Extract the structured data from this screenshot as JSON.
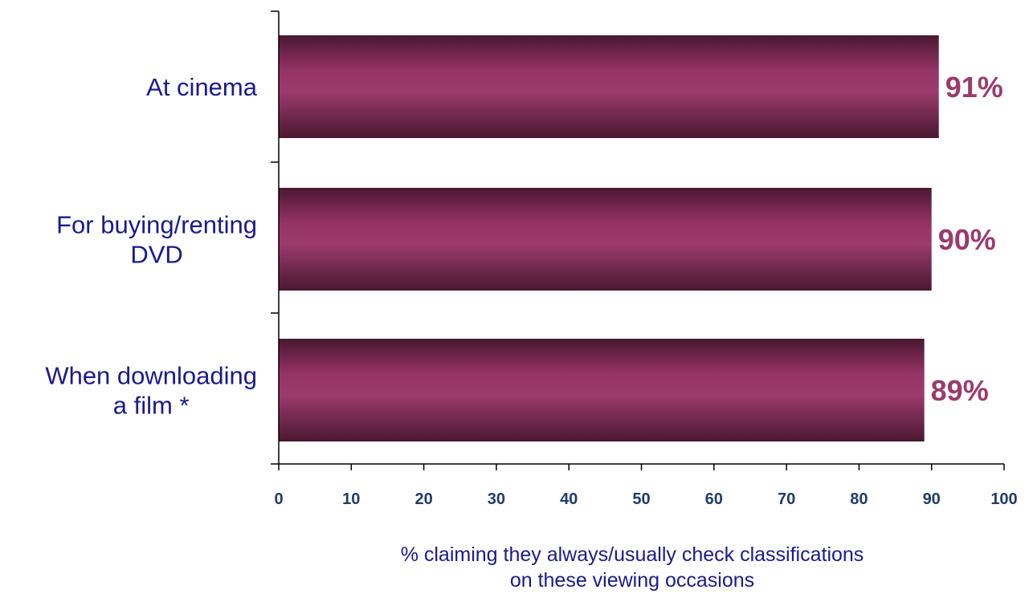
{
  "chart_data": {
    "type": "bar",
    "orientation": "horizontal",
    "categories": [
      [
        "At cinema"
      ],
      [
        "For buying/renting",
        "DVD"
      ],
      [
        "When downloading",
        "a film *"
      ]
    ],
    "values": [
      91,
      90,
      89
    ],
    "data_labels": [
      "91%",
      "90%",
      "89%"
    ],
    "xlim": [
      0,
      100
    ],
    "x_ticks": [
      "0",
      "10",
      "20",
      "30",
      "40",
      "50",
      "60",
      "70",
      "80",
      "90",
      "100"
    ],
    "xlabel": [
      "% claiming they always/usually check classifications",
      "on these viewing occasions"
    ],
    "ylabel": "",
    "title": "",
    "grid": false,
    "legend": "none",
    "colors": {
      "bar_center": "#9b3b6c",
      "bar_edge": "#4a1830",
      "data_label": "#9b3b6c",
      "category_text": "#1a1a8c",
      "tick_text": "#1f3c6b"
    }
  }
}
